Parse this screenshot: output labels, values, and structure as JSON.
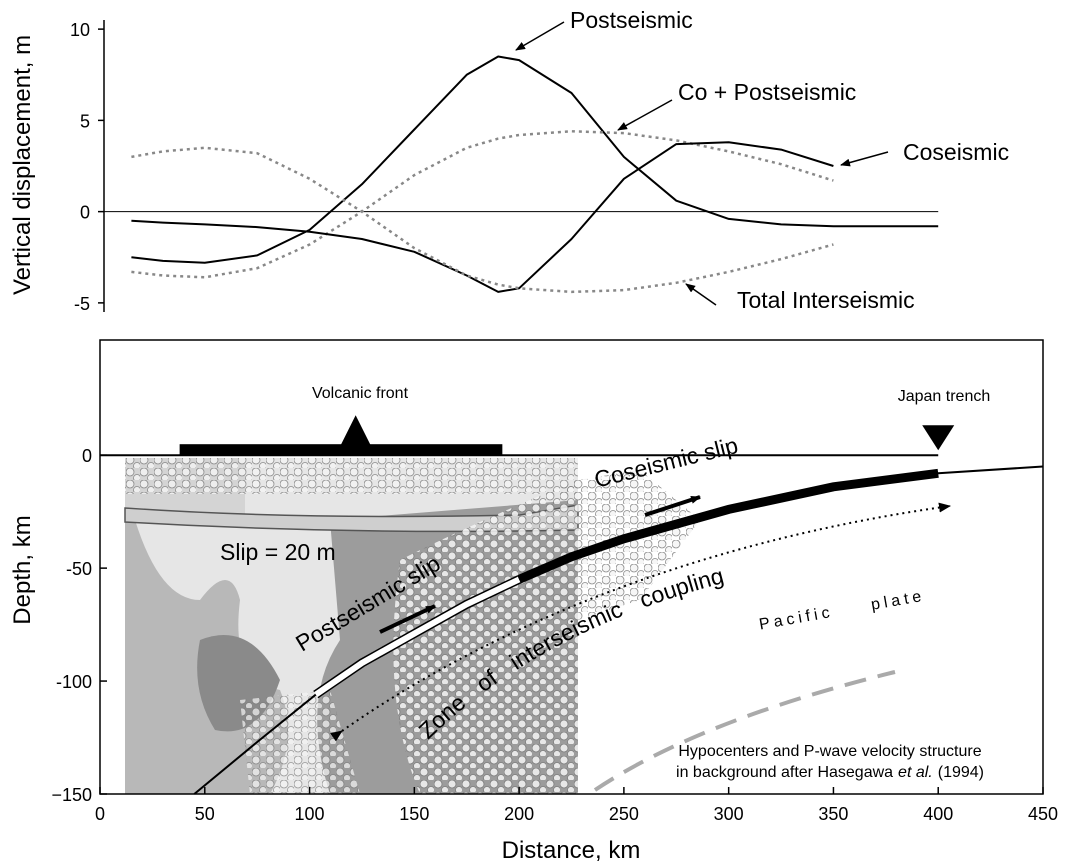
{
  "chart_data": [
    {
      "type": "line",
      "ylabel": "Vertical displacement, m",
      "x": [
        15,
        30,
        50,
        75,
        100,
        125,
        150,
        175,
        190,
        200,
        225,
        250,
        275,
        300,
        325,
        350,
        375,
        400
      ],
      "xlim": [
        0,
        450
      ],
      "ylim": [
        -5.5,
        10.5
      ],
      "yticks": [
        10,
        5,
        0,
        -5
      ],
      "zero_line": true,
      "series": [
        {
          "name": "Postseismic",
          "color": "#000000",
          "dash": "solid",
          "values": [
            -2.5,
            -2.7,
            -2.8,
            -2.4,
            -1.0,
            1.5,
            4.5,
            7.5,
            8.5,
            8.3,
            6.5,
            3.0,
            0.6,
            -0.4,
            -0.7,
            -0.8,
            -0.8,
            -0.8
          ]
        },
        {
          "name": "Co + Postseismic",
          "color": "#888888",
          "dash": "dotted",
          "values": [
            -3.3,
            -3.5,
            -3.6,
            -3.1,
            -1.8,
            0.0,
            2.0,
            3.5,
            4.0,
            4.2,
            4.4,
            4.3,
            3.9,
            3.3,
            2.6,
            1.7,
            null,
            null
          ]
        },
        {
          "name": "Coseismic",
          "color": "#000000",
          "dash": "solid",
          "values": [
            -0.5,
            -0.6,
            -0.7,
            -0.85,
            -1.1,
            -1.5,
            -2.2,
            -3.5,
            -4.4,
            -4.2,
            -1.5,
            1.8,
            3.7,
            3.8,
            3.4,
            2.5,
            null,
            null
          ]
        },
        {
          "name": "Total Interseismic",
          "color": "#888888",
          "dash": "dotted",
          "values": [
            3.0,
            3.3,
            3.5,
            3.2,
            1.8,
            0.0,
            -2.0,
            -3.5,
            -4.0,
            -4.2,
            -4.4,
            -4.3,
            -3.9,
            -3.3,
            -2.6,
            -1.8,
            null,
            null
          ]
        }
      ]
    },
    {
      "type": "cross_section",
      "xlabel": "Distance, km",
      "ylabel": "Depth, km",
      "xlim": [
        0,
        450
      ],
      "ylim": [
        -150,
        51
      ],
      "xticks": [
        0,
        50,
        100,
        150,
        200,
        250,
        300,
        350,
        400,
        450
      ],
      "yticks": [
        0,
        -50,
        -100,
        {
          "value": -150,
          "label": "−150"
        }
      ],
      "plate_interface": {
        "x": [
          45,
          75,
          103,
          125,
          150,
          175,
          200,
          225,
          250,
          300,
          350,
          400,
          450
        ],
        "depth": [
          -150,
          -127,
          -106,
          -92,
          -79,
          -66,
          -55,
          -45,
          -37,
          -24,
          -14,
          -8,
          -5
        ]
      },
      "coseismic_slip_range": [
        200,
        400
      ],
      "postseismic_slip_range": [
        103,
        200
      ],
      "volcanic_arc_range": [
        38,
        192
      ],
      "volcanic_front_x": 122,
      "trench_x": 400,
      "annotations": {
        "volcanic_front": "Volcanic front",
        "japan_trench": "Japan trench",
        "coseismic_slip": "Coseismic slip",
        "slip_amount": "Slip = 20 m",
        "postseismic_slip": "Postseismic slip",
        "coupling_zone": "Zone of interseismic coupling",
        "pacific_plate": "Pacific plate",
        "note_line1": "Hypocenters and P-wave velocity structure",
        "note_line2": [
          "in background after Hasegawa",
          "et al.",
          "(1994)"
        ]
      }
    }
  ]
}
